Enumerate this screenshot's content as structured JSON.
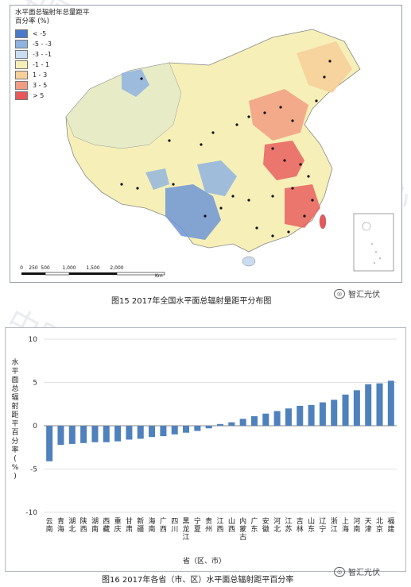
{
  "map": {
    "legend_title": "水平面总辐射年总量距平百分率 (%)",
    "legend": [
      {
        "label": "< -5",
        "color": "#4b79c9"
      },
      {
        "label": "-5 - -3",
        "color": "#8fb3e0"
      },
      {
        "label": "-3 - -1",
        "color": "#c9dcf0"
      },
      {
        "label": "-1 - 1",
        "color": "#f6f0b8"
      },
      {
        "label": "1 - 3",
        "color": "#f7cf9a"
      },
      {
        "label": "3 - 5",
        "color": "#f29d83"
      },
      {
        "label": "> 5",
        "color": "#e8575a"
      }
    ],
    "scale_ticks": [
      "0",
      "250",
      "500",
      "1,000",
      "1,500",
      "2,000"
    ],
    "scale_unit": "Km",
    "caption": "图15 2017年全国水平面总辐射量距平分布图"
  },
  "watermark_text": "智汇光伏",
  "chart_data": {
    "type": "bar",
    "ylabel": "水平面总辐射距平百分率(%)",
    "xlabel": "省（区、市）",
    "ylim": [
      -10,
      10
    ],
    "yticks": [
      -10,
      -5,
      0,
      5,
      10
    ],
    "grid": true,
    "bar_color": "#4f81bd",
    "categories": [
      "云南",
      "青海",
      "湖北",
      "陕西",
      "湖南",
      "西藏",
      "重庆",
      "甘肃",
      "新疆",
      "海南",
      "广西",
      "四川",
      "黑龙江",
      "宁夏",
      "贵州",
      "江西",
      "山西",
      "内蒙古",
      "广东",
      "安徽",
      "河北",
      "江苏",
      "吉林",
      "山东",
      "辽宁",
      "浙江",
      "上海",
      "河南",
      "天津",
      "北京",
      "福建"
    ],
    "values": [
      -4.1,
      -2.2,
      -2.1,
      -2.0,
      -1.9,
      -1.9,
      -1.8,
      -1.6,
      -1.5,
      -1.3,
      -1.2,
      -1.0,
      -0.8,
      -0.6,
      -0.3,
      0.2,
      0.4,
      0.8,
      1.1,
      1.4,
      1.7,
      2.0,
      2.3,
      2.4,
      2.7,
      3.0,
      3.6,
      4.1,
      4.8,
      4.9,
      5.2
    ],
    "caption": "图16 2017年各省（市、区）水平面总辐射距平百分率"
  }
}
